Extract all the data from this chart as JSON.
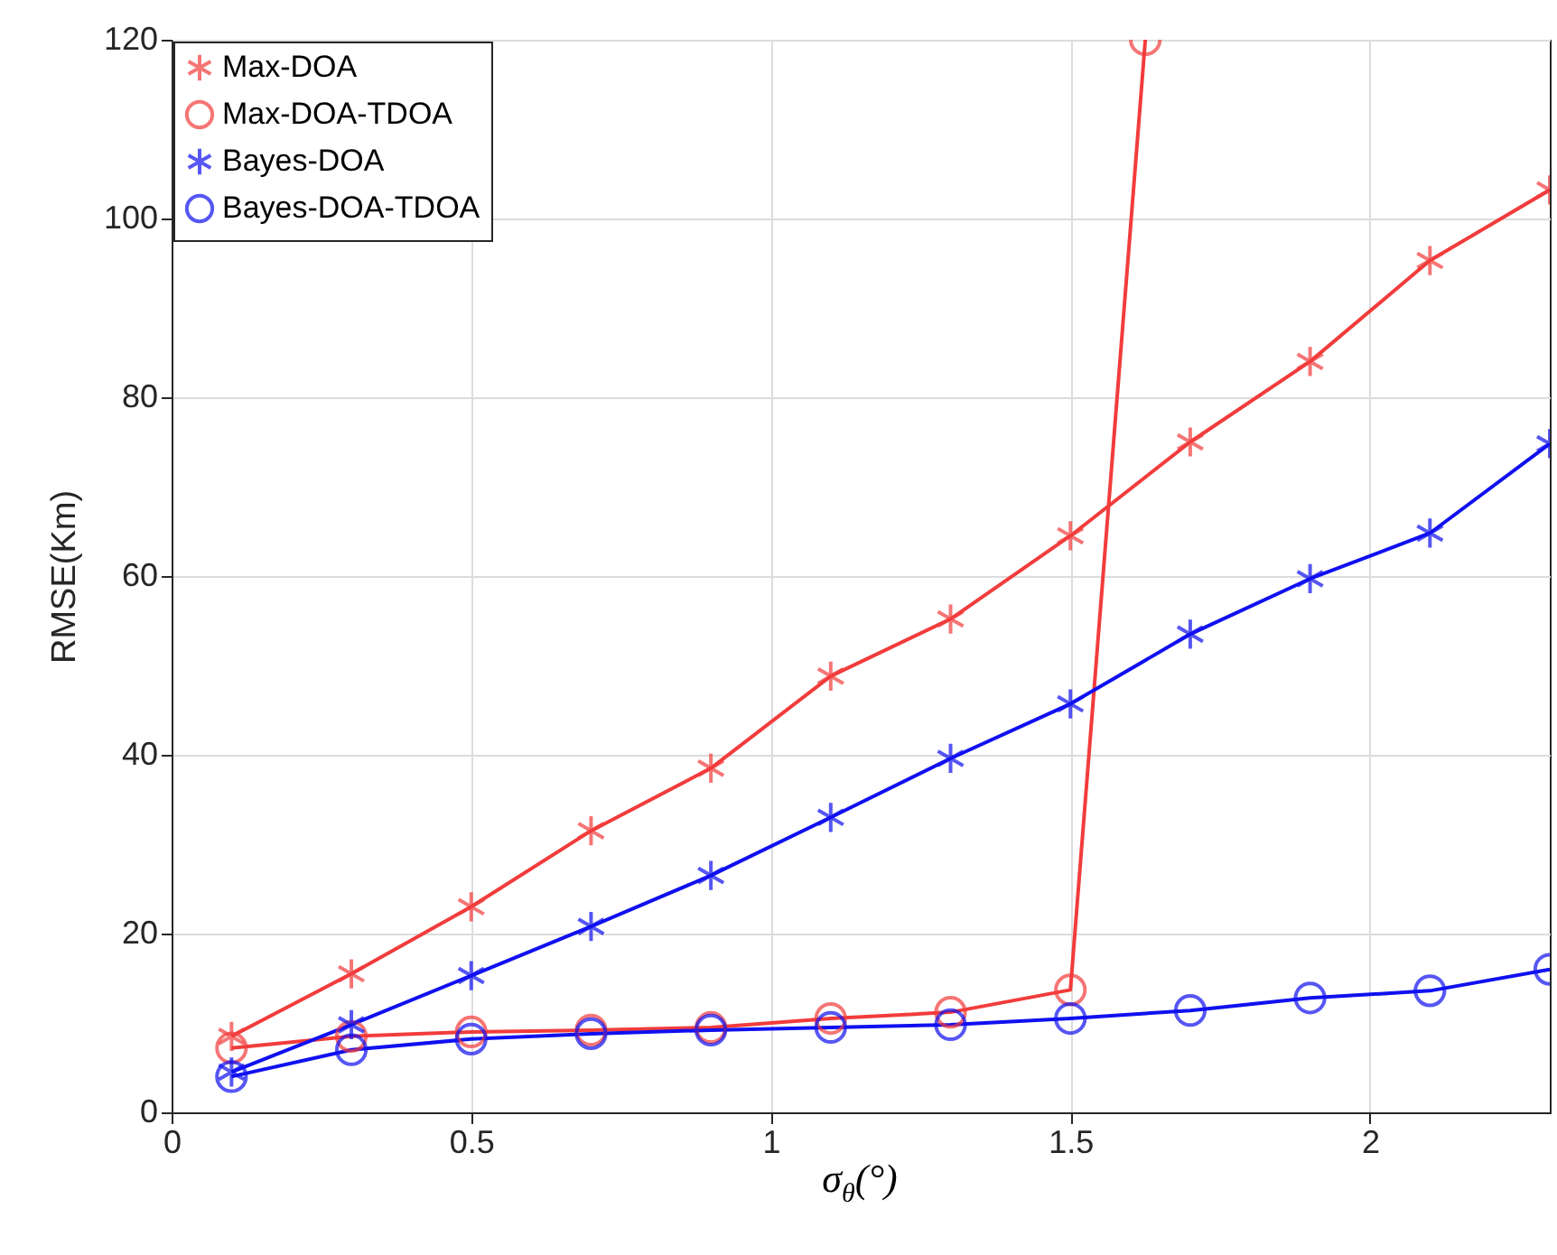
{
  "chart_data": {
    "type": "line",
    "xlabel": "σ$_{θ}$(°)",
    "ylabel": "RMSE(Km)",
    "xlim": [
      0,
      2.3
    ],
    "xticks": [
      0,
      0.5,
      1,
      1.5,
      2
    ],
    "ylim": [
      0,
      120
    ],
    "yticks": [
      0,
      20,
      40,
      60,
      80,
      100,
      120
    ],
    "grid": true,
    "legend": "top left",
    "line_style": "solid",
    "x": [
      0.1,
      0.3,
      0.5,
      0.7,
      0.9,
      1.1,
      1.3,
      1.5,
      1.7,
      1.9,
      2.1,
      2.3
    ],
    "series": [
      {
        "name": "Max-DOA",
        "color": "#f23c3c",
        "marker": "cross",
        "values": [
          8.5,
          15.5,
          23,
          31.5,
          38.5,
          48.8,
          55.2,
          64.5,
          75,
          84,
          95.3,
          103.2
        ]
      },
      {
        "name": "Max-DOA-TDOA",
        "color": "#f23c3c",
        "marker": "circle",
        "x": [
          0.1,
          0.3,
          0.5,
          0.7,
          0.9,
          1.1,
          1.3,
          1.5,
          1.625
        ],
        "values": [
          7.2,
          8.5,
          9,
          9.2,
          9.5,
          10.5,
          11.2,
          13.7,
          120
        ]
      },
      {
        "name": "Bayes-DOA",
        "color": "#1010f0",
        "marker": "cross",
        "values": [
          4.5,
          9.8,
          15.3,
          20.8,
          26.5,
          33,
          39.6,
          45.7,
          53.5,
          59.7,
          64.8,
          74.8
        ]
      },
      {
        "name": "Bayes-DOA-TDOA",
        "color": "#1010f0",
        "marker": "circle",
        "values": [
          4,
          7,
          8.2,
          8.8,
          9.2,
          9.5,
          9.8,
          10.5,
          11.4,
          12.8,
          13.6,
          16
        ]
      }
    ]
  }
}
